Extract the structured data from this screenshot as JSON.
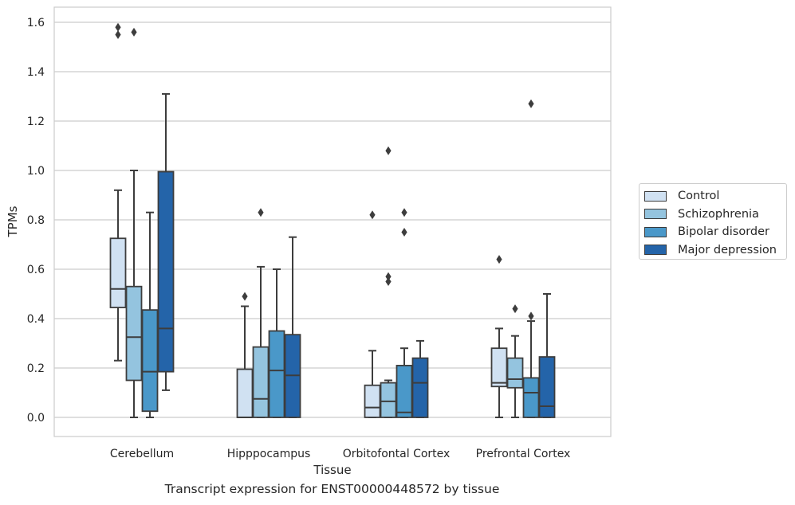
{
  "caption": "Transcript expression for ENST00000448572 by tissue",
  "chart_data": {
    "type": "boxplot",
    "xlabel": "Tissue",
    "ylabel": "TPMs",
    "ylim": [
      -0.08,
      1.66
    ],
    "yticks": [
      "0.0",
      "0.2",
      "0.4",
      "0.6",
      "0.8",
      "1.0",
      "1.2",
      "1.4",
      "1.6"
    ],
    "grid": "horizontal",
    "legend_position": "right",
    "categories": [
      "Cerebellum",
      "Hipppocampus",
      "Orbitofontal Cortex",
      "Prefrontal Cortex"
    ],
    "series": [
      {
        "name": "Control",
        "color": "#d0e1f2",
        "boxes": [
          {
            "whislo": 0.23,
            "q1": 0.445,
            "med": 0.52,
            "q3": 0.725,
            "whishi": 0.92,
            "fliers": [
              1.55,
              1.58
            ]
          },
          {
            "whislo": 0.0,
            "q1": 0.0,
            "med": 0.0,
            "q3": 0.195,
            "whishi": 0.45,
            "fliers": [
              0.49
            ]
          },
          {
            "whislo": 0.0,
            "q1": 0.0,
            "med": 0.04,
            "q3": 0.13,
            "whishi": 0.27,
            "fliers": [
              0.82
            ]
          },
          {
            "whislo": 0.0,
            "q1": 0.125,
            "med": 0.14,
            "q3": 0.28,
            "whishi": 0.36,
            "fliers": [
              0.64
            ]
          }
        ]
      },
      {
        "name": "Schizophrenia",
        "color": "#94c4df",
        "boxes": [
          {
            "whislo": 0.0,
            "q1": 0.15,
            "med": 0.325,
            "q3": 0.53,
            "whishi": 1.0,
            "fliers": [
              1.56
            ]
          },
          {
            "whislo": 0.0,
            "q1": 0.0,
            "med": 0.075,
            "q3": 0.285,
            "whishi": 0.61,
            "fliers": [
              0.83
            ]
          },
          {
            "whislo": 0.0,
            "q1": 0.0,
            "med": 0.065,
            "q3": 0.14,
            "whishi": 0.15,
            "fliers": [
              0.55,
              0.57,
              1.08
            ]
          },
          {
            "whislo": 0.0,
            "q1": 0.12,
            "med": 0.155,
            "q3": 0.24,
            "whishi": 0.33,
            "fliers": [
              0.44
            ]
          }
        ]
      },
      {
        "name": "Bipolar disorder",
        "color": "#4a98c9",
        "boxes": [
          {
            "whislo": 0.0,
            "q1": 0.025,
            "med": 0.185,
            "q3": 0.435,
            "whishi": 0.83,
            "fliers": []
          },
          {
            "whislo": 0.0,
            "q1": 0.0,
            "med": 0.19,
            "q3": 0.35,
            "whishi": 0.6,
            "fliers": []
          },
          {
            "whislo": 0.0,
            "q1": 0.0,
            "med": 0.02,
            "q3": 0.21,
            "whishi": 0.28,
            "fliers": [
              0.75,
              0.83
            ]
          },
          {
            "whislo": 0.0,
            "q1": 0.0,
            "med": 0.1,
            "q3": 0.16,
            "whishi": 0.39,
            "fliers": [
              0.41,
              1.27
            ]
          }
        ]
      },
      {
        "name": "Major depression",
        "color": "#2464a9",
        "boxes": [
          {
            "whislo": 0.11,
            "q1": 0.185,
            "med": 0.36,
            "q3": 0.995,
            "whishi": 1.31,
            "fliers": []
          },
          {
            "whislo": 0.0,
            "q1": 0.0,
            "med": 0.17,
            "q3": 0.335,
            "whishi": 0.73,
            "fliers": []
          },
          {
            "whislo": 0.0,
            "q1": 0.0,
            "med": 0.14,
            "q3": 0.24,
            "whishi": 0.31,
            "fliers": []
          },
          {
            "whislo": 0.0,
            "q1": 0.0,
            "med": 0.045,
            "q3": 0.245,
            "whishi": 0.5,
            "fliers": []
          }
        ]
      }
    ]
  }
}
